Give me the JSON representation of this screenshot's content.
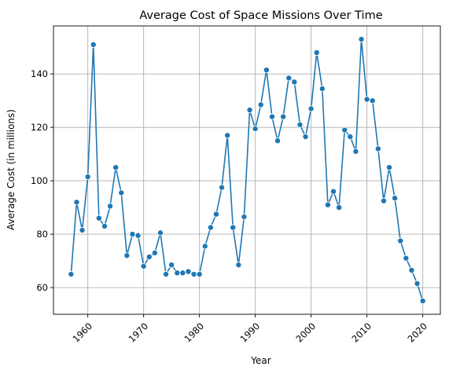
{
  "chart_data": {
    "type": "line",
    "title": "Average Cost of Space Missions Over Time",
    "xlabel": "Year",
    "ylabel": "Average Cost (in millions)",
    "xlim": [
      1953.85,
      2023.15
    ],
    "ylim": [
      50.0,
      158.0
    ],
    "xticks": [
      1960,
      1970,
      1980,
      1990,
      2000,
      2010,
      2020
    ],
    "yticks": [
      60,
      80,
      100,
      120,
      140
    ],
    "grid": true,
    "line_color": "#1f77b4",
    "marker": "circle",
    "series": [
      {
        "x": [
          1957,
          1958,
          1959,
          1960,
          1961,
          1962,
          1963,
          1964,
          1965,
          1966,
          1967,
          1968,
          1969,
          1970,
          1971,
          1972,
          1973,
          1974,
          1975,
          1976,
          1977,
          1978,
          1979,
          1980,
          1981,
          1982,
          1983,
          1984,
          1985,
          1986,
          1987,
          1988,
          1989,
          1990,
          1991,
          1992,
          1993,
          1994,
          1995,
          1996,
          1997,
          1998,
          1999,
          2000,
          2001,
          2002,
          2003,
          2004,
          2005,
          2006,
          2007,
          2008,
          2009,
          2010,
          2011,
          2012,
          2013,
          2014,
          2015,
          2016,
          2017,
          2018,
          2019,
          2020
        ],
        "values": [
          65,
          92,
          81.5,
          101.5,
          151,
          86,
          83,
          90.5,
          105,
          95.5,
          72,
          80,
          79.5,
          68,
          71.5,
          73,
          80.5,
          65,
          68.5,
          65.5,
          65.5,
          66,
          65,
          65,
          75.5,
          82.5,
          87.5,
          97.5,
          117,
          82.5,
          68.5,
          86.5,
          126.5,
          119.5,
          128.5,
          141.5,
          124,
          115,
          124,
          138.5,
          137,
          121,
          116.5,
          127,
          148,
          134.5,
          91,
          96,
          90,
          119,
          116.5,
          111,
          153,
          130.5,
          130,
          112,
          92.5,
          105,
          93.5,
          77.5,
          71,
          66.5,
          61.5,
          55
        ]
      }
    ]
  }
}
